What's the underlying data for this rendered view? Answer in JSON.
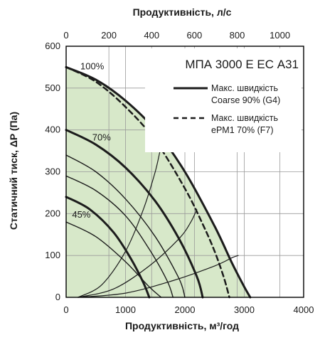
{
  "chart_data": {
    "type": "line",
    "title": "МПА 3000 Е ЕС А31",
    "xlabel": "Продуктивність, м³/год",
    "x2label": "Продуктивність, л/с",
    "ylabel": "Статичний тиск, ΔP (Па)",
    "xlim": [
      0,
      4000
    ],
    "x2lim": [
      0,
      1111
    ],
    "ylim": [
      0,
      600
    ],
    "x_ticks": [
      "0",
      "1000",
      "2000",
      "3000",
      "4000"
    ],
    "x2_ticks": [
      "0",
      "200",
      "400",
      "600",
      "800",
      "1000"
    ],
    "y_ticks": [
      "0",
      "100",
      "200",
      "300",
      "400",
      "500",
      "600"
    ],
    "grid": true,
    "legend_position": "top-right",
    "legend": [
      {
        "label_line1": "Макс. швидкість",
        "label_line2": "Coarse 90% (G4)",
        "style": "solid"
      },
      {
        "label_line1": "Макс. швидкість",
        "label_line2": "ePM1 70% (F7)",
        "style": "dashed"
      }
    ],
    "speed_labels": [
      {
        "text": "100%",
        "x": 240,
        "y": 545
      },
      {
        "text": "70%",
        "x": 440,
        "y": 375
      },
      {
        "text": "45%",
        "x": 100,
        "y": 190
      }
    ],
    "series": [
      {
        "name": "Макс. швидкість Coarse 90% (G4)",
        "role": "max_solid",
        "x": [
          0,
          500,
          1000,
          1500,
          2000,
          2500,
          2800,
          3000,
          3100
        ],
        "y": [
          550,
          520,
          470,
          400,
          300,
          170,
          80,
          25,
          0
        ]
      },
      {
        "name": "Макс. швидкість ePM1 70% (F7)",
        "role": "max_dashed",
        "x": [
          0,
          500,
          1000,
          1500,
          2000,
          2300,
          2500,
          2650,
          2750
        ],
        "y": [
          550,
          515,
          455,
          375,
          260,
          175,
          110,
          50,
          0
        ]
      },
      {
        "role": "speed_thick",
        "x": [
          0,
          500,
          1000,
          1500,
          1900,
          2200,
          2300
        ],
        "y": [
          400,
          365,
          310,
          230,
          140,
          50,
          0
        ]
      },
      {
        "role": "speed_thick",
        "x": [
          0,
          400,
          800,
          1100,
          1300,
          1400
        ],
        "y": [
          240,
          210,
          155,
          90,
          35,
          0
        ]
      },
      {
        "role": "speed",
        "x": [
          0,
          500,
          1000,
          1500,
          1900,
          2000
        ],
        "y": [
          340,
          300,
          235,
          145,
          45,
          0
        ]
      },
      {
        "role": "speed",
        "x": [
          0,
          500,
          1000,
          1400,
          1700,
          1800
        ],
        "y": [
          290,
          255,
          195,
          115,
          40,
          0
        ]
      },
      {
        "role": "speed",
        "x": [
          0,
          500,
          1000,
          1400,
          1600
        ],
        "y": [
          180,
          145,
          85,
          25,
          0
        ]
      },
      {
        "role": "system",
        "x": [
          200,
          600,
          1000,
          1300,
          1500,
          1600,
          1700
        ],
        "y": [
          0,
          30,
          110,
          210,
          300,
          360,
          400
        ]
      },
      {
        "role": "system",
        "x": [
          200,
          800,
          1400,
          1900,
          2100,
          2200
        ],
        "y": [
          0,
          20,
          75,
          140,
          180,
          210
        ]
      },
      {
        "role": "system",
        "x": [
          200,
          1000,
          1800,
          2500,
          2800,
          2900
        ],
        "y": [
          0,
          10,
          40,
          75,
          95,
          100
        ]
      }
    ]
  },
  "colors": {
    "fill": "#d7e8c9",
    "grid": "#9a9a9a",
    "curve": "#1c1c1c",
    "text": "#1a1a1a"
  }
}
